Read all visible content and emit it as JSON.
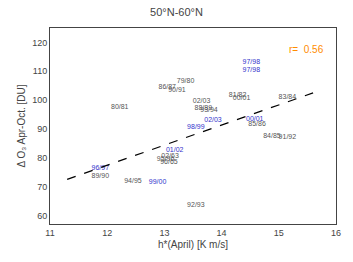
{
  "chart_data": {
    "type": "scatter",
    "title": "50°N-60°N",
    "xlabel": "h*(April) [K m/s]",
    "ylabel": "Δ O₃ Apr-Oct. [DU]",
    "xlim": [
      11,
      16
    ],
    "ylim": [
      57,
      125
    ],
    "xticks": [
      11,
      12,
      13,
      14,
      15,
      16
    ],
    "yticks": [
      60,
      70,
      80,
      90,
      100,
      110,
      120
    ],
    "grid": false,
    "series": [
      {
        "type": "text",
        "x": [
          13.37,
          12.22,
          14.28,
          15.15,
          14.88,
          14.62,
          13.05,
          13.68,
          11.88,
          13.22,
          15.15,
          13.55,
          13.78,
          12.45,
          13.02,
          13.08,
          13.65,
          14.35,
          11.88,
          14.52,
          14.52,
          13.55,
          12.88,
          14.58,
          13.18,
          13.85,
          13.1
        ],
        "values": [
          106.5,
          97.5,
          101.5,
          101.0,
          87.5,
          91.5,
          104.5,
          97.0,
          73.5,
          103.5,
          87.0,
          63.5,
          96.5,
          72.0,
          79.5,
          78.5,
          99.5,
          100.5,
          76.5,
          113.0,
          110.5,
          90.5,
          71.5,
          93.5,
          82.5,
          93.0,
          80.5
        ],
        "labels": [
          "79/80",
          "80/81",
          "81/82",
          "83/84",
          "84/85",
          "85/86",
          "86/87",
          "88/89",
          "89/90",
          "90/91",
          "91/92",
          "92/93",
          "93/94",
          "94/95",
          "95/96",
          "96/65",
          "02/03",
          "00/01",
          "96/97",
          "97/98",
          "97/98",
          "98/99",
          "99/00",
          "00/01",
          "01/02",
          "02/03",
          "02/63"
        ],
        "colors": [
          "#555555",
          "#555555",
          "#555555",
          "#555555",
          "#555555",
          "#555555",
          "#555555",
          "#555555",
          "#555555",
          "#555555",
          "#555555",
          "#555555",
          "#555555",
          "#555555",
          "#555555",
          "#555555",
          "#555555",
          "#555555",
          "#3333cc",
          "#3333cc",
          "#3333cc",
          "#3333cc",
          "#3333cc",
          "#3333cc",
          "#3333cc",
          "#3333cc",
          "#555555"
        ]
      },
      {
        "type": "line",
        "x": [
          11.3,
          15.6
        ],
        "values": [
          72.5,
          102.5
        ],
        "color": "black",
        "line_style": "dashed"
      }
    ],
    "annotations": [
      {
        "text": "r=  0.56",
        "color": "darkorange"
      }
    ]
  }
}
